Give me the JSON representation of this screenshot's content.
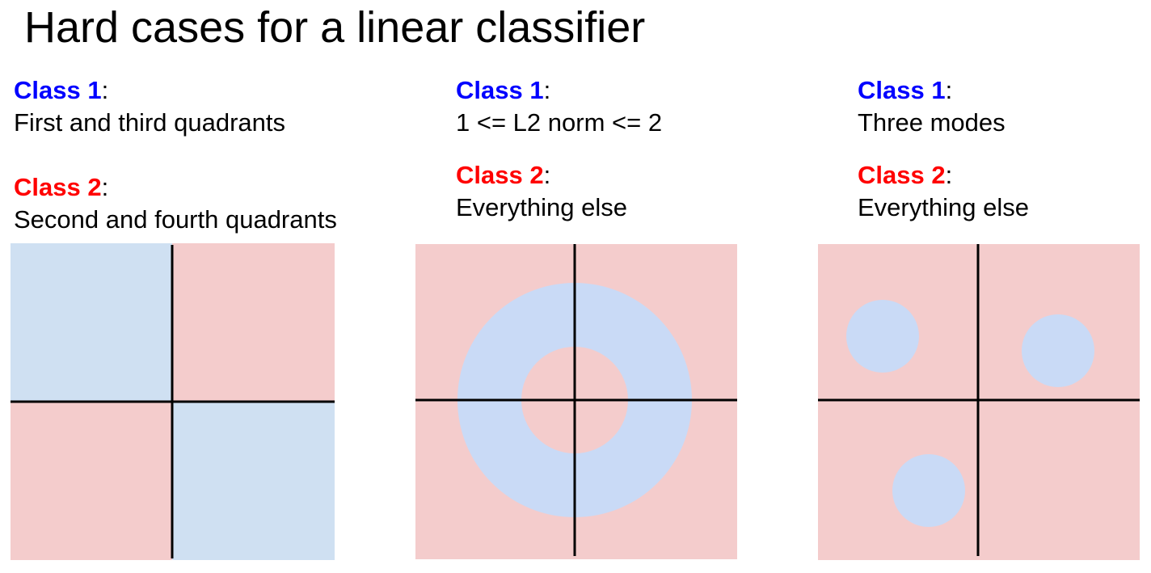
{
  "title": "Hard cases for a linear classifier",
  "colors": {
    "class1_label": "#0000ff",
    "class2_label": "#ff0000",
    "class1_region": "#cfe0f2",
    "class1_region_alt": "#c9daf6",
    "class2_region": "#f4cccc",
    "axis": "#000000"
  },
  "panels": [
    {
      "class1_label": "Class 1",
      "class1_desc": "First and third quadrants",
      "class2_label": "Class 2",
      "class2_desc": "Second and fourth quadrants",
      "separator": ":"
    },
    {
      "class1_label": "Class 1",
      "class1_desc": "1 <= L2 norm <= 2",
      "class2_label": "Class 2",
      "class2_desc": "Everything else",
      "separator": ":"
    },
    {
      "class1_label": "Class 1",
      "class1_desc": "Three modes",
      "class2_label": "Class 2",
      "class2_desc": "Everything else",
      "separator": ":"
    }
  ]
}
